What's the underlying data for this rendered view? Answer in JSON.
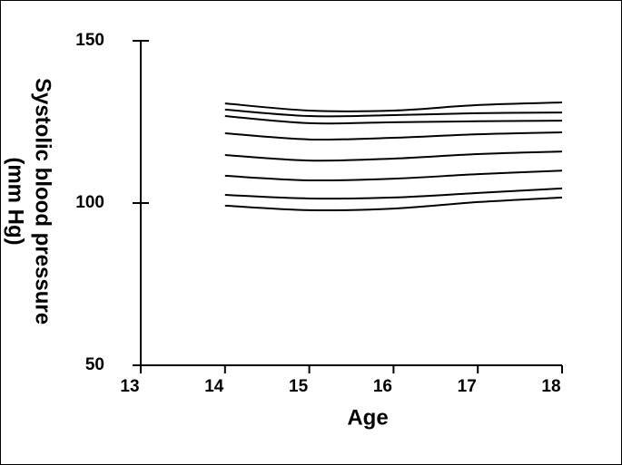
{
  "chart_data": {
    "type": "line",
    "x_label": "Age",
    "y_label": [
      "Systolic blood pressure",
      "(mm Hg)"
    ],
    "x": [
      14,
      15,
      16,
      17,
      18
    ],
    "color": "#000000",
    "series": [
      {
        "values": [
          130.7,
          128.5,
          128.5,
          130.2,
          131.0
        ]
      },
      {
        "values": [
          128.8,
          126.8,
          127.1,
          127.7,
          127.9
        ]
      },
      {
        "values": [
          126.8,
          124.6,
          124.9,
          125.2,
          125.4
        ]
      },
      {
        "values": [
          121.5,
          119.6,
          120.1,
          121.2,
          121.8
        ]
      },
      {
        "values": [
          114.8,
          113.1,
          113.7,
          115.1,
          115.9
        ]
      },
      {
        "values": [
          108.4,
          107.0,
          107.5,
          108.9,
          110.0
        ]
      },
      {
        "values": [
          102.5,
          101.4,
          101.7,
          103.1,
          104.5
        ]
      },
      {
        "values": [
          99.2,
          97.8,
          98.3,
          100.3,
          101.7
        ]
      }
    ],
    "xlim": [
      13,
      18
    ],
    "xticks": [
      13,
      14,
      15,
      16,
      17,
      18
    ],
    "ylim": [
      50,
      150
    ],
    "yticks": [
      50,
      100,
      150
    ],
    "grid": false
  }
}
